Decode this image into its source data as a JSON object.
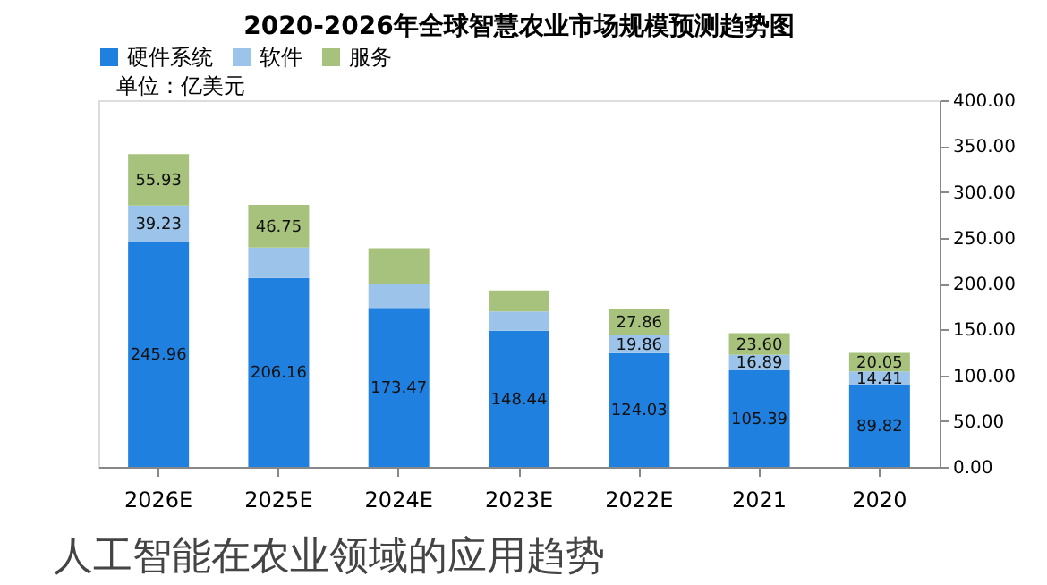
{
  "chart_data": {
    "type": "bar",
    "title": "2020-2026年全球智慧农业市场规模预测趋势图",
    "stacked": true,
    "categories": [
      "2026E",
      "2025E",
      "2024E",
      "2023E",
      "2022E",
      "2021",
      "2020"
    ],
    "series": [
      {
        "name": "硬件系统",
        "color": "#1f80e0",
        "values": [
          245.96,
          206.16,
          173.47,
          148.44,
          124.03,
          105.39,
          89.82
        ],
        "value_labels": [
          "245.96",
          "206.16",
          "173.47",
          "148.44",
          "124.03",
          "105.39",
          "89.82"
        ]
      },
      {
        "name": "软件",
        "color": "#9cc4ea",
        "values": [
          39.23,
          33,
          26,
          21,
          19.86,
          16.89,
          14.41
        ],
        "value_labels": [
          "39.23",
          null,
          null,
          null,
          "19.86",
          "16.89",
          "14.41"
        ]
      },
      {
        "name": "服务",
        "color": "#a6c27c",
        "values": [
          55.93,
          46.75,
          39,
          23,
          27.86,
          23.6,
          20.05
        ],
        "value_labels": [
          "55.93",
          "46.75",
          null,
          null,
          "27.86",
          "23.60",
          "20.05"
        ]
      }
    ],
    "ylim": [
      0,
      400
    ],
    "yticks": [
      {
        "value": 0,
        "label": "0.00"
      },
      {
        "value": 50,
        "label": "50.00"
      },
      {
        "value": 100,
        "label": "100.00"
      },
      {
        "value": 150,
        "label": "150.00"
      },
      {
        "value": 200,
        "label": "200.00"
      },
      {
        "value": 250,
        "label": "250.00"
      },
      {
        "value": 300,
        "label": "300.00"
      },
      {
        "value": 350,
        "label": "350.00"
      },
      {
        "value": 400,
        "label": "400.00"
      }
    ],
    "grid": false,
    "legend": "top",
    "annotations": [
      "单位：亿美元",
      "人工智能在农业领域的应用趋势"
    ]
  }
}
